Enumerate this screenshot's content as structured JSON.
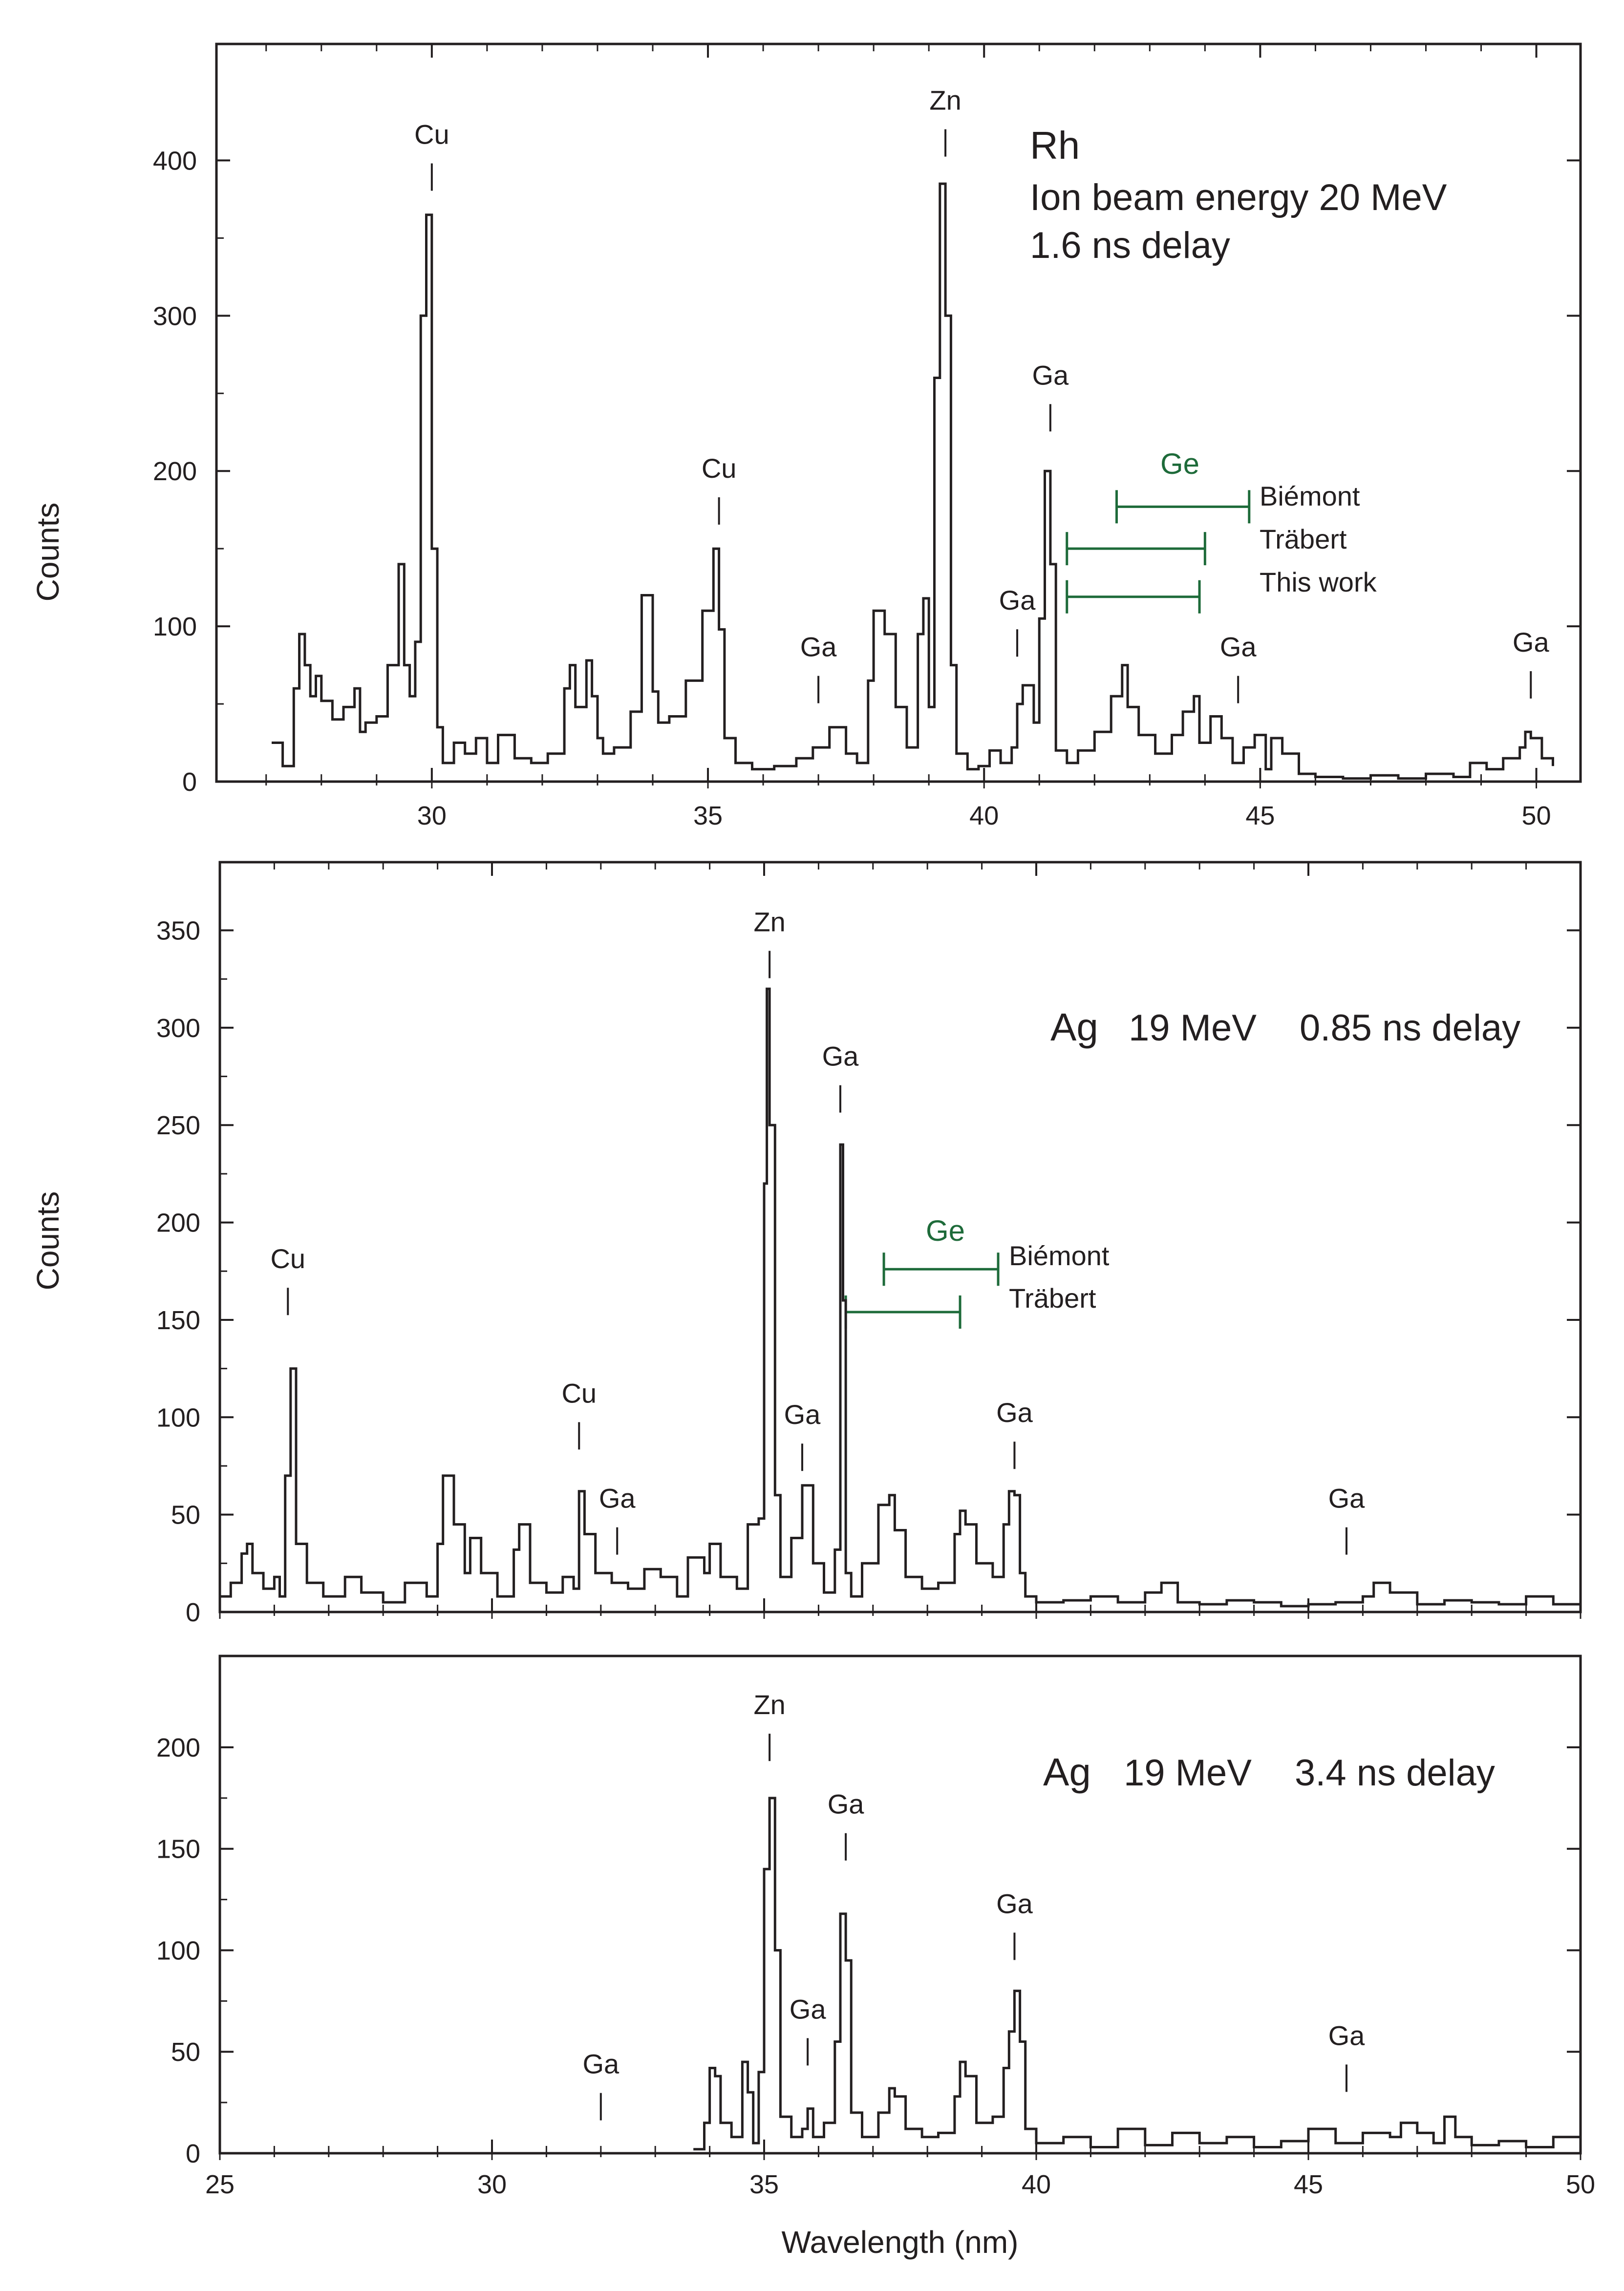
{
  "colors": {
    "ink": "#231f20",
    "ge": "#1e6b3a"
  },
  "chart_data": [
    {
      "type": "line",
      "id": "top",
      "title_lines": [
        "Rh",
        "Ion beam energy 20 MeV",
        "1.6 ns delay"
      ],
      "ylabel": "Counts",
      "xlabel": "",
      "xlim": [
        26.1,
        50.8
      ],
      "ylim": [
        0,
        475
      ],
      "xticks": [
        30,
        35,
        40,
        45,
        50
      ],
      "yticks": [
        0,
        100,
        200,
        300,
        400
      ],
      "series": [
        {
          "name": "Rh 20 MeV 1.6 ns",
          "x": [
            27.1,
            27.3,
            27.5,
            27.6,
            27.7,
            27.8,
            27.9,
            28.0,
            28.2,
            28.4,
            28.6,
            28.7,
            28.8,
            29.0,
            29.2,
            29.4,
            29.5,
            29.6,
            29.7,
            29.8,
            29.9,
            30.0,
            30.1,
            30.2,
            30.4,
            30.6,
            30.8,
            31.0,
            31.2,
            31.5,
            31.8,
            32.1,
            32.4,
            32.5,
            32.6,
            32.8,
            32.9,
            33.0,
            33.1,
            33.3,
            33.6,
            33.8,
            34.0,
            34.1,
            34.3,
            34.6,
            34.9,
            35.1,
            35.2,
            35.3,
            35.5,
            35.8,
            36.2,
            36.6,
            36.9,
            37.2,
            37.5,
            37.7,
            37.9,
            38.0,
            38.2,
            38.4,
            38.6,
            38.8,
            38.9,
            39.0,
            39.1,
            39.2,
            39.3,
            39.4,
            39.5,
            39.7,
            39.9,
            40.1,
            40.3,
            40.5,
            40.6,
            40.7,
            40.9,
            41.0,
            41.1,
            41.2,
            41.3,
            41.5,
            41.7,
            42.0,
            42.3,
            42.5,
            42.6,
            42.8,
            43.1,
            43.4,
            43.6,
            43.8,
            43.9,
            44.1,
            44.3,
            44.5,
            44.7,
            44.9,
            45.1,
            45.2,
            45.4,
            45.7,
            46.0,
            46.5,
            47.0,
            47.5,
            48.0,
            48.5,
            48.8,
            49.1,
            49.4,
            49.7,
            49.8,
            49.9,
            50.1,
            50.3
          ],
          "values": [
            25,
            10,
            60,
            95,
            75,
            55,
            68,
            52,
            40,
            48,
            60,
            32,
            38,
            42,
            75,
            140,
            75,
            55,
            90,
            300,
            365,
            150,
            35,
            12,
            25,
            18,
            28,
            12,
            30,
            15,
            12,
            18,
            60,
            75,
            48,
            78,
            55,
            28,
            18,
            22,
            45,
            120,
            58,
            38,
            42,
            65,
            110,
            150,
            98,
            28,
            12,
            8,
            10,
            15,
            22,
            35,
            18,
            12,
            65,
            110,
            95,
            48,
            22,
            95,
            118,
            48,
            260,
            385,
            300,
            75,
            18,
            8,
            10,
            20,
            12,
            22,
            50,
            62,
            38,
            105,
            200,
            140,
            20,
            12,
            20,
            32,
            55,
            75,
            48,
            30,
            18,
            30,
            45,
            55,
            25,
            42,
            28,
            12,
            22,
            30,
            8,
            28,
            18,
            5,
            3,
            2,
            4,
            2,
            5,
            3,
            12,
            8,
            15,
            22,
            32,
            28,
            15,
            10
          ]
        }
      ],
      "peak_labels": [
        {
          "label": "Cu",
          "x": 30.0,
          "y": 405
        },
        {
          "label": "Cu",
          "x": 35.2,
          "y": 190
        },
        {
          "label": "Zn",
          "x": 39.3,
          "y": 427
        },
        {
          "label": "Ga",
          "x": 41.2,
          "y": 250
        },
        {
          "label": "Ga",
          "x": 40.6,
          "y": 105
        },
        {
          "label": "Ga",
          "x": 37.0,
          "y": 75
        },
        {
          "label": "Ga",
          "x": 44.6,
          "y": 75
        },
        {
          "label": "Ga",
          "x": 49.9,
          "y": 78
        }
      ],
      "ge": {
        "label": "Ge",
        "bars": [
          {
            "source": "Biémont",
            "x1": 42.4,
            "x2": 44.8,
            "y": 177
          },
          {
            "source": "Träbert",
            "x1": 41.5,
            "x2": 44.0,
            "y": 150
          },
          {
            "source": "This work",
            "x1": 41.5,
            "x2": 43.9,
            "y": 119
          }
        ]
      }
    },
    {
      "type": "line",
      "id": "middle",
      "title_lines": [
        "Ag",
        "19 MeV",
        "0.85 ns delay"
      ],
      "ylabel": "Counts",
      "xlabel": "",
      "xlim": [
        25,
        50
      ],
      "ylim": [
        0,
        385
      ],
      "xticks": [
        25,
        30,
        35,
        40,
        45,
        50
      ],
      "yticks": [
        0,
        50,
        100,
        150,
        200,
        250,
        300,
        350
      ],
      "series": [
        {
          "name": "Ag 19 MeV 0.85 ns",
          "x": [
            25.0,
            25.2,
            25.4,
            25.5,
            25.6,
            25.8,
            26.0,
            26.1,
            26.2,
            26.3,
            26.4,
            26.6,
            26.9,
            27.3,
            27.6,
            28.0,
            28.4,
            28.8,
            29.0,
            29.1,
            29.3,
            29.5,
            29.6,
            29.8,
            30.1,
            30.4,
            30.5,
            30.7,
            31.0,
            31.3,
            31.5,
            31.6,
            31.7,
            31.9,
            32.2,
            32.5,
            32.8,
            33.1,
            33.4,
            33.6,
            33.9,
            34.0,
            34.2,
            34.5,
            34.7,
            34.9,
            35.0,
            35.05,
            35.1,
            35.2,
            35.3,
            35.5,
            35.7,
            35.9,
            36.1,
            36.3,
            36.4,
            36.45,
            36.5,
            36.6,
            36.8,
            37.1,
            37.3,
            37.4,
            37.6,
            37.9,
            38.2,
            38.5,
            38.6,
            38.7,
            38.9,
            39.2,
            39.4,
            39.5,
            39.6,
            39.7,
            39.8,
            40.0,
            40.5,
            41.0,
            41.5,
            42.0,
            42.3,
            42.6,
            43.0,
            43.5,
            44.0,
            44.5,
            45.0,
            45.5,
            46.0,
            46.2,
            46.5,
            47.0,
            47.5,
            48.0,
            48.5,
            49.0,
            49.5,
            50.0
          ],
          "values": [
            8,
            15,
            30,
            35,
            20,
            12,
            18,
            8,
            70,
            125,
            35,
            15,
            8,
            18,
            10,
            5,
            15,
            8,
            35,
            70,
            45,
            20,
            38,
            20,
            8,
            32,
            45,
            15,
            10,
            18,
            12,
            62,
            40,
            20,
            15,
            12,
            22,
            18,
            8,
            28,
            20,
            35,
            18,
            12,
            45,
            48,
            220,
            320,
            250,
            60,
            18,
            38,
            65,
            25,
            10,
            32,
            240,
            160,
            20,
            8,
            25,
            55,
            60,
            42,
            18,
            12,
            15,
            40,
            52,
            45,
            25,
            18,
            45,
            62,
            60,
            20,
            8,
            5,
            6,
            8,
            5,
            10,
            15,
            5,
            4,
            6,
            5,
            3,
            4,
            5,
            8,
            15,
            10,
            4,
            6,
            5,
            4,
            8,
            4,
            5
          ]
        }
      ],
      "peak_labels": [
        {
          "label": "Cu",
          "x": 26.25,
          "y": 172
        },
        {
          "label": "Cu",
          "x": 31.6,
          "y": 103
        },
        {
          "label": "Zn",
          "x": 35.1,
          "y": 345
        },
        {
          "label": "Ga",
          "x": 36.4,
          "y": 276
        },
        {
          "label": "Ga",
          "x": 35.7,
          "y": 92
        },
        {
          "label": "Ga",
          "x": 39.6,
          "y": 93
        },
        {
          "label": "Ga",
          "x": 32.3,
          "y": 49
        },
        {
          "label": "Ga",
          "x": 45.7,
          "y": 49
        }
      ],
      "ge": {
        "label": "Ge",
        "bars": [
          {
            "source": "Biémont",
            "x1": 37.2,
            "x2": 39.3,
            "y": 176
          },
          {
            "source": "Träbert",
            "x1": 36.5,
            "x2": 38.6,
            "y": 154
          }
        ]
      }
    },
    {
      "type": "line",
      "id": "bottom",
      "title_lines": [
        "Ag",
        "19 MeV",
        "3.4 ns delay"
      ],
      "ylabel": "",
      "xlabel": "Wavelength (nm)",
      "xlim": [
        25,
        50
      ],
      "ylim": [
        0,
        245
      ],
      "xticks": [
        25,
        30,
        35,
        40,
        45,
        50
      ],
      "yticks": [
        0,
        50,
        100,
        150,
        200
      ],
      "series": [
        {
          "name": "Ag 19 MeV 3.4 ns",
          "x": [
            33.7,
            33.9,
            34.0,
            34.1,
            34.2,
            34.4,
            34.6,
            34.7,
            34.8,
            34.9,
            35.0,
            35.1,
            35.2,
            35.3,
            35.5,
            35.7,
            35.8,
            35.9,
            36.1,
            36.3,
            36.4,
            36.5,
            36.6,
            36.8,
            37.1,
            37.3,
            37.4,
            37.6,
            37.9,
            38.2,
            38.5,
            38.6,
            38.7,
            38.9,
            39.2,
            39.4,
            39.5,
            39.6,
            39.7,
            39.8,
            40.0,
            40.5,
            41.0,
            41.5,
            42.0,
            42.5,
            43.0,
            43.5,
            44.0,
            44.5,
            45.0,
            45.5,
            46.0,
            46.5,
            46.7,
            47.0,
            47.3,
            47.5,
            47.7,
            48.0,
            48.5,
            49.0,
            49.5,
            50.0
          ],
          "values": [
            2,
            15,
            42,
            38,
            15,
            8,
            45,
            30,
            5,
            40,
            140,
            175,
            100,
            18,
            8,
            12,
            22,
            8,
            15,
            55,
            118,
            95,
            20,
            8,
            20,
            32,
            28,
            12,
            8,
            10,
            28,
            45,
            38,
            15,
            18,
            42,
            60,
            80,
            55,
            12,
            5,
            8,
            3,
            12,
            4,
            10,
            5,
            8,
            3,
            6,
            12,
            5,
            10,
            8,
            15,
            10,
            5,
            18,
            8,
            4,
            6,
            3,
            8,
            5
          ]
        }
      ],
      "peak_labels": [
        {
          "label": "Zn",
          "x": 35.1,
          "y": 212
        },
        {
          "label": "Ga",
          "x": 36.5,
          "y": 163
        },
        {
          "label": "Ga",
          "x": 35.8,
          "y": 62
        },
        {
          "label": "Ga",
          "x": 39.6,
          "y": 114
        },
        {
          "label": "Ga",
          "x": 32.0,
          "y": 35
        },
        {
          "label": "Ga",
          "x": 45.7,
          "y": 49
        }
      ]
    }
  ]
}
